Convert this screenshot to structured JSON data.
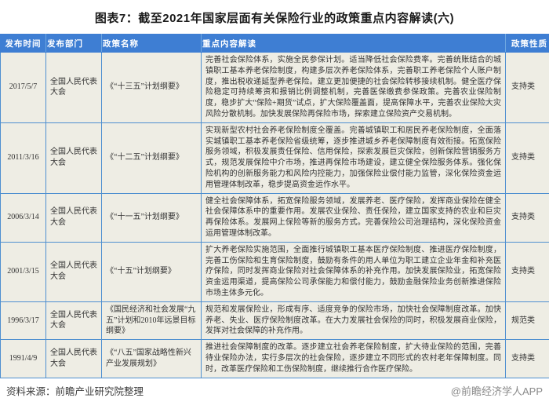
{
  "title": "图表7：截至2021年国家层面有关保险行业的政策重点内容解读(六)",
  "colors": {
    "header_bg": "#3E7ED3",
    "border": "#4E8FD0",
    "cell_bg": "#EEEDE4"
  },
  "watermark": {
    "text": "前瞻产业研究院"
  },
  "table": {
    "columns": [
      {
        "key": "date",
        "label": "发布时间"
      },
      {
        "key": "dept",
        "label": "发布部门"
      },
      {
        "key": "name",
        "label": "政策名称"
      },
      {
        "key": "content",
        "label": "重点内容解读"
      },
      {
        "key": "nature",
        "label": "政策性质"
      }
    ],
    "rows": [
      {
        "date": "2017/5/7",
        "dept": "全国人民代表大会",
        "name": "《“十三五”计划纲要》",
        "content": "完善社会保险体系，实施全民参保计划。适当降低社会保险费率。完善统账结合的城镇职工基本养老保险制度，构建多层次养老保险体系，完善职工养老保险个人账户制度，推出税收递延型养老保险。建立更加便捷的社会保险转移接续机制。健全医疗保险稳定可持续筹资和报销比例调整机制，完善医保缴费参保政策。完善农业保险制度，稳步扩大“保险+期货”试点，扩大保险覆盖面，提高保障水平，完善农业保险大灾风险分散机制。加快发展保险再保险市场，探索建立保险资产交易机制。",
        "nature": "支持类"
      },
      {
        "date": "2011/3/16",
        "dept": "全国人民代表大会",
        "name": "《“十二五”计划纲要》",
        "content": "实现新型农村社会养老保险制度全覆盖。完善城镇职工和居民养老保险制度，全面落实城镇职工基本养老保险省级统筹，逐步推进城乡养老保障制度有效衔接。拓宽保险服务领域，积极发展责任保险、信用保险，探索发展巨灾保险，创新保险营销服务方式，规范发展保险中介市场，推进再保险市场建设，建立健全保险服务体系。强化保险机构的创新服务能力和风险内控能力，加强保险业偿付能力监管，深化保险资金运用管理体制改革，稳步提高资金运作水平。",
        "nature": "支持类"
      },
      {
        "date": "2006/3/14",
        "dept": "全国人民代表大会",
        "name": "《“十一五”计划纲要》",
        "content": "健全社会保障体系，拓宽保险服务领域，发展养老、医疗保险，发挥商业保险在健全社会保障体系中的重要作用。发展农业保险、责任保险，建立国家支持的农业和巨灾再保险体系。发展网上保险等新的服务方式。完善保险公司治理结构，深化保险资金运用管理体制改革。",
        "nature": "支持类"
      },
      {
        "date": "2001/3/15",
        "dept": "全国人民代表大会",
        "name": "《“十五”计划纲要》",
        "content": "扩大养老保险实施范围，全面推行城镇职工基本医疗保险制度、推进医疗保险制度，完善工伤保险和生育保险制度，鼓励有条件的用人单位为职工建立企业年金和补充医疗保险，同时发挥商业保险对社会保障体系的补充作用。加快发展保险业，拓宽保险资金运用渠道，提高保险公司承保能力和偿付能力，鼓励金融保险业务创新推进保险市场主体多元化。",
        "nature": "支持类"
      },
      {
        "date": "1996/3/17",
        "dept": "全国人民代表大会",
        "name": "《国民经济和社会发展“九五”计划和2010年远景目标纲要》",
        "content": "规范和发展保险业，形成有序、适度竞争的保险市场，加快社会保障制度改革。加快养老、失业、医疗保险制度改革。在大力发展社会保险的同时，积极发展商业保险，发挥对社会保障的补充作用。",
        "nature": "规范类"
      },
      {
        "date": "1991/4/9",
        "dept": "全国人民代表大会",
        "name": "《“八五”国家战略性新兴产业发展规划》",
        "content": "推进社会保障制度的改革。逐步建立社会养老保险制度，扩大待业保险的范围，完善待业保险办法，实行多层次的社会保险，逐步建立不同形式的农村老年保障制度。同时，改革医疗保险和工伤保险制度，继续推行合作医疗保险。",
        "nature": "支持类"
      }
    ]
  },
  "footer": {
    "source": "资料来源：前瞻产业研究院整理",
    "brand": "@前瞻经济学人APP"
  }
}
